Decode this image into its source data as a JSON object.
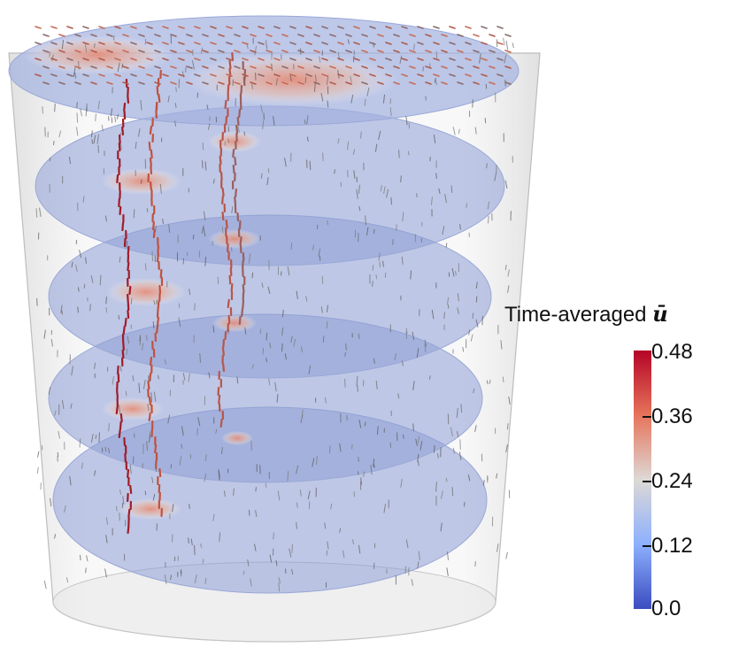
{
  "colorbar": {
    "title": "Time-averaged",
    "symbol": "ū",
    "ticks": [
      "0.48",
      "0.36",
      "0.24",
      "0.12",
      "0.0"
    ],
    "colors": {
      "max": "#b40426",
      "mid_high": "#e7745b",
      "mid": "#ddd9d6",
      "mid_low": "#8db0fe",
      "min": "#3b4cc0"
    }
  },
  "scene": {
    "description_icons": [
      "cylinder",
      "disc-slices",
      "velocity-arrows"
    ],
    "slice_color": "#8e9fd6",
    "cylinder_color": "#d9d9d9"
  }
}
